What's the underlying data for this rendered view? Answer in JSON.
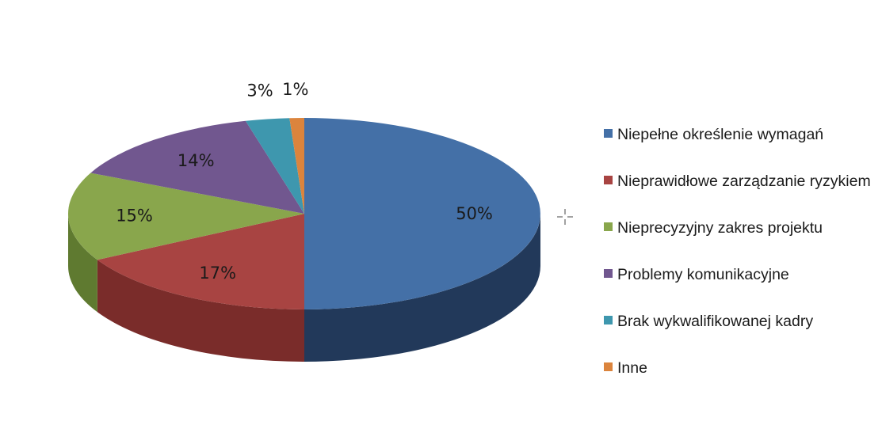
{
  "chart_data": {
    "type": "pie",
    "variant": "3d",
    "legend_position": "right",
    "labels": [
      "Niepełne określenie wymagań",
      "Nieprawidłowe zarządzanie ryzykiem",
      "Nieprecyzyjny zakres projektu",
      "Problemy komunikacyjne",
      "Brak wykwalifikowanej kadry",
      "Inne"
    ],
    "values": [
      50,
      17,
      15,
      14,
      3,
      1
    ],
    "value_labels": [
      "50%",
      "17%",
      "15%",
      "14%",
      "3%",
      "1%"
    ],
    "colors": [
      "#4470A7",
      "#A84442",
      "#89A64C",
      "#71578F",
      "#3E97AE",
      "#DB843D"
    ],
    "side_colors": [
      "#22395A",
      "#7A2C2A",
      "#5F7A30",
      "#4E3C66",
      "#2A6C7E",
      "#A85E22"
    ]
  }
}
